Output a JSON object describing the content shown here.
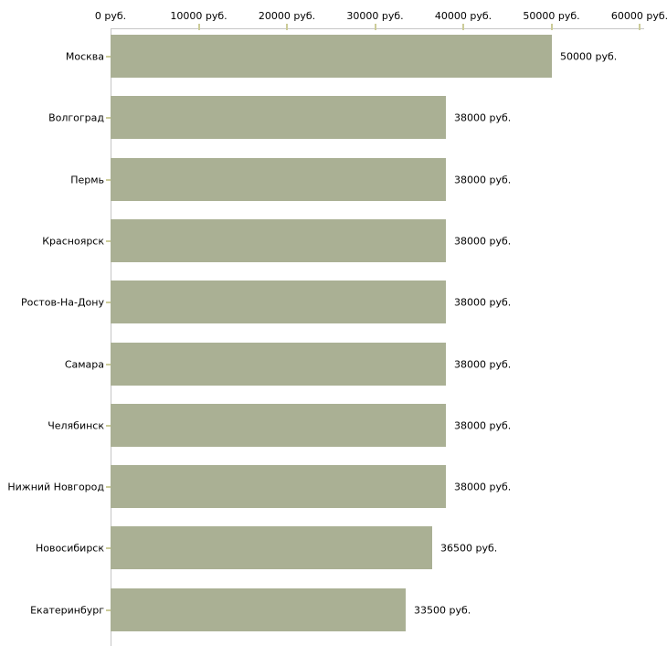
{
  "chart_data": {
    "type": "bar",
    "orientation": "horizontal",
    "title": "",
    "xlabel": "",
    "ylabel": "",
    "unit": "руб.",
    "categories": [
      "Москва",
      "Волгоград",
      "Пермь",
      "Красноярск",
      "Ростов-На-Дону",
      "Самара",
      "Челябинск",
      "Нижний Новгород",
      "Новосибирск",
      "Екатеринбург"
    ],
    "values": [
      50000,
      38000,
      38000,
      38000,
      38000,
      38000,
      38000,
      38000,
      36500,
      33500
    ],
    "value_labels": [
      "50000 руб.",
      "38000 руб.",
      "38000 руб.",
      "38000 руб.",
      "38000 руб.",
      "38000 руб.",
      "38000 руб.",
      "38000 руб.",
      "36500 руб.",
      "33500 руб."
    ],
    "xlim": [
      0,
      60000
    ],
    "x_ticks": [
      0,
      10000,
      20000,
      30000,
      40000,
      50000,
      60000
    ],
    "x_tick_labels": [
      "0 руб.",
      "10000 руб.",
      "20000 руб.",
      "30000 руб.",
      "40000 руб.",
      "50000 руб.",
      "60000 руб."
    ],
    "axis_position": "top",
    "grid": false,
    "legend": null,
    "colors": {
      "bar": "#aab094",
      "axis_line": "#c6c6c6",
      "tick": "#cccc99",
      "text": "#000000",
      "background": "#ffffff"
    }
  }
}
